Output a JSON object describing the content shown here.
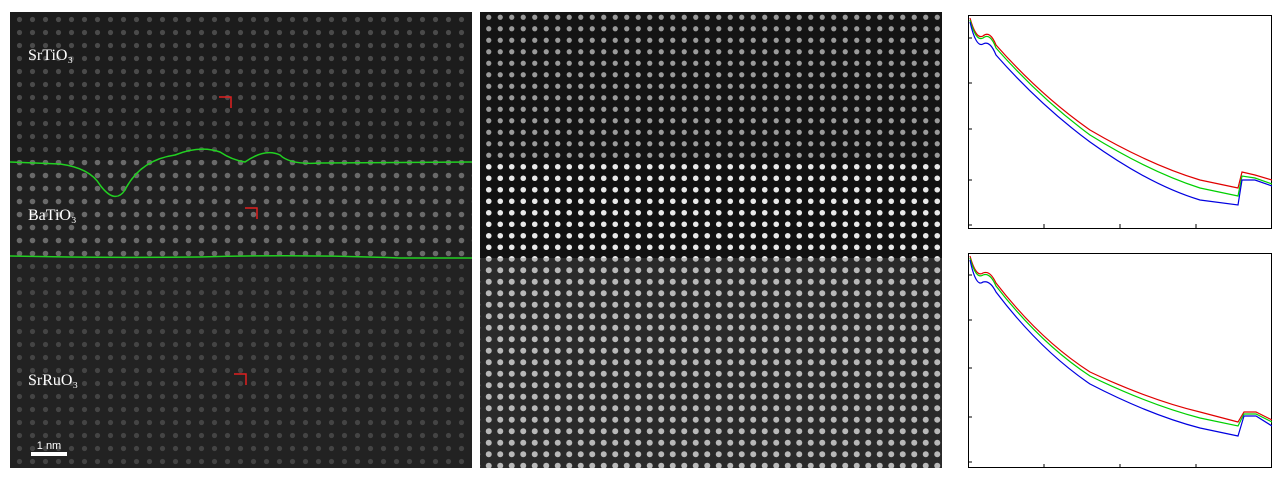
{
  "image": {
    "layer_labels": [
      "SrTiO₃",
      "BaTiO₃",
      "SrRuO₃"
    ],
    "scale_bar": "1 nm"
  }
}
